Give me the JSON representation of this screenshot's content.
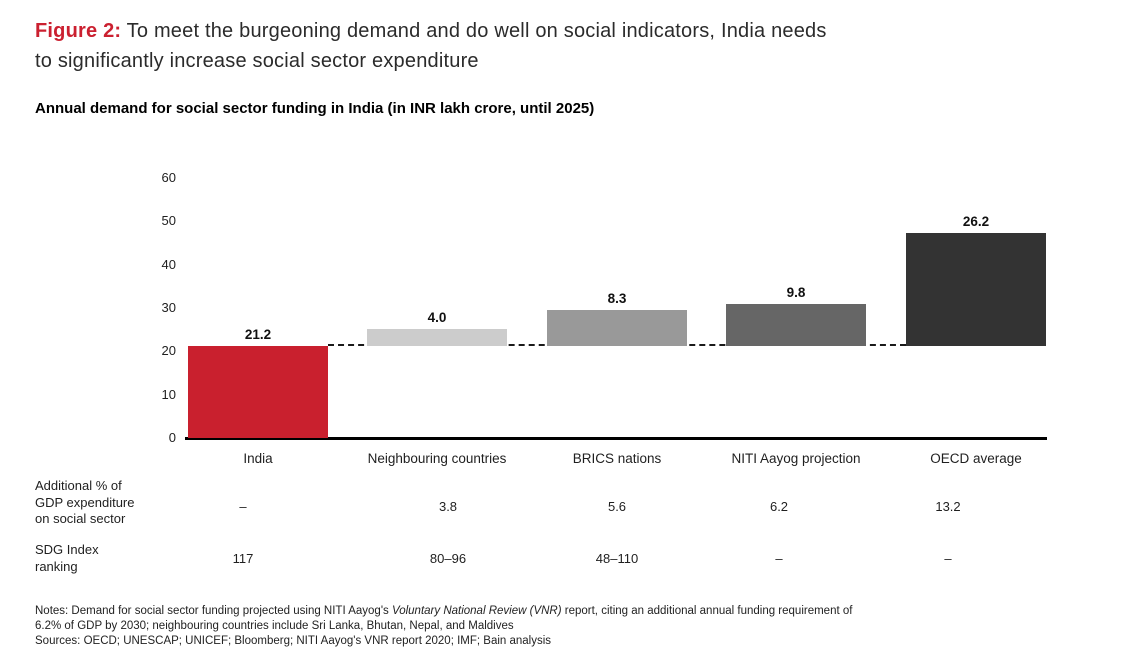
{
  "figure": {
    "label": "Figure 2:",
    "title_line1": "To meet the burgeoning demand and do well on social indicators, India needs",
    "title_line2": "to significantly increase social sector expenditure"
  },
  "chart_data": {
    "type": "bar",
    "variant": "floating-bar-waterfall",
    "title": "Annual demand for social sector funding in India (in INR lakh crore, until 2025)",
    "categories": [
      "India",
      "Neighbouring countries",
      "BRICS nations",
      "NITI Aayog projection",
      "OECD average"
    ],
    "series": [
      {
        "name": "Annual demand for social sector funding (INR lakh crore)",
        "values": [
          21.2,
          4.0,
          8.3,
          9.8,
          26.2
        ],
        "base_offsets": [
          0,
          21.2,
          21.2,
          21.2,
          21.2
        ],
        "labels": [
          "21.2",
          "4.0",
          "8.3",
          "9.8",
          "26.2"
        ]
      }
    ],
    "bar_colors": [
      "#c9202e",
      "#cccccc",
      "#999999",
      "#666666",
      "#333333"
    ],
    "reference_line": {
      "value": 21.2,
      "style": "dashed",
      "color": "#1a1a1a"
    },
    "xlabel": "",
    "ylabel": "",
    "ylim": [
      0,
      60
    ],
    "y_ticks": [
      60,
      50,
      40,
      30,
      20,
      10,
      0
    ],
    "grid": false,
    "legend": false
  },
  "table": {
    "rows": [
      {
        "label": "Additional % of\nGDP expenditure\non social sector",
        "values": [
          "–",
          "3.8",
          "5.6",
          "6.2",
          "13.2"
        ]
      },
      {
        "label": "SDG Index\nranking",
        "values": [
          "117",
          "80–96",
          "48–110",
          "–",
          "–"
        ]
      }
    ]
  },
  "notes": {
    "line1_prefix": "Notes: Demand for social sector funding projected using NITI Aayog's ",
    "line1_italic": "Voluntary National Review (VNR)",
    "line1_suffix": " report, citing an additional annual funding requirement of",
    "line2": "6.2% of GDP by 2030; neighbouring countries include Sri Lanka, Bhutan, Nepal, and Maldives",
    "line3": "Sources: OECD; UNESCAP; UNICEF; Bloomberg; NITI Aayog's VNR report 2020; IMF; Bain analysis"
  },
  "colors": {
    "accent_red": "#cb2030",
    "axis": "#000000",
    "text": "#222222"
  }
}
